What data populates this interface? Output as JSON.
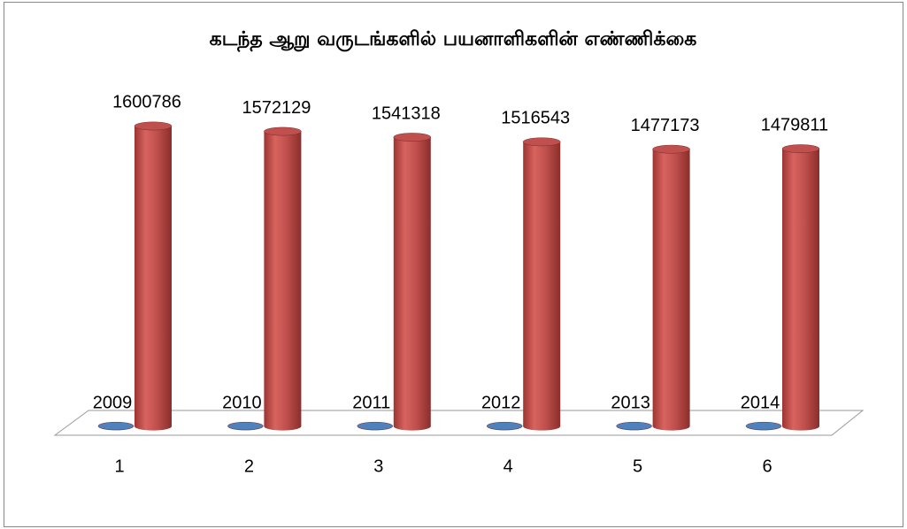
{
  "chart_data": {
    "type": "cylinder",
    "title": "கடந்த ஆறு வருடங்களில் பயனாளிகளின் எண்ணிக்கை",
    "categories": [
      "1",
      "2",
      "3",
      "4",
      "5",
      "6"
    ],
    "series": [
      {
        "color": "#4f81bd",
        "values": [
          2009,
          2010,
          2011,
          2012,
          2013,
          2014
        ]
      },
      {
        "color": "#c0504d",
        "values": [
          1600786,
          1572129,
          1541318,
          1516543,
          1477173,
          1479811
        ]
      }
    ],
    "ylim": [
      0,
      1900000
    ]
  }
}
